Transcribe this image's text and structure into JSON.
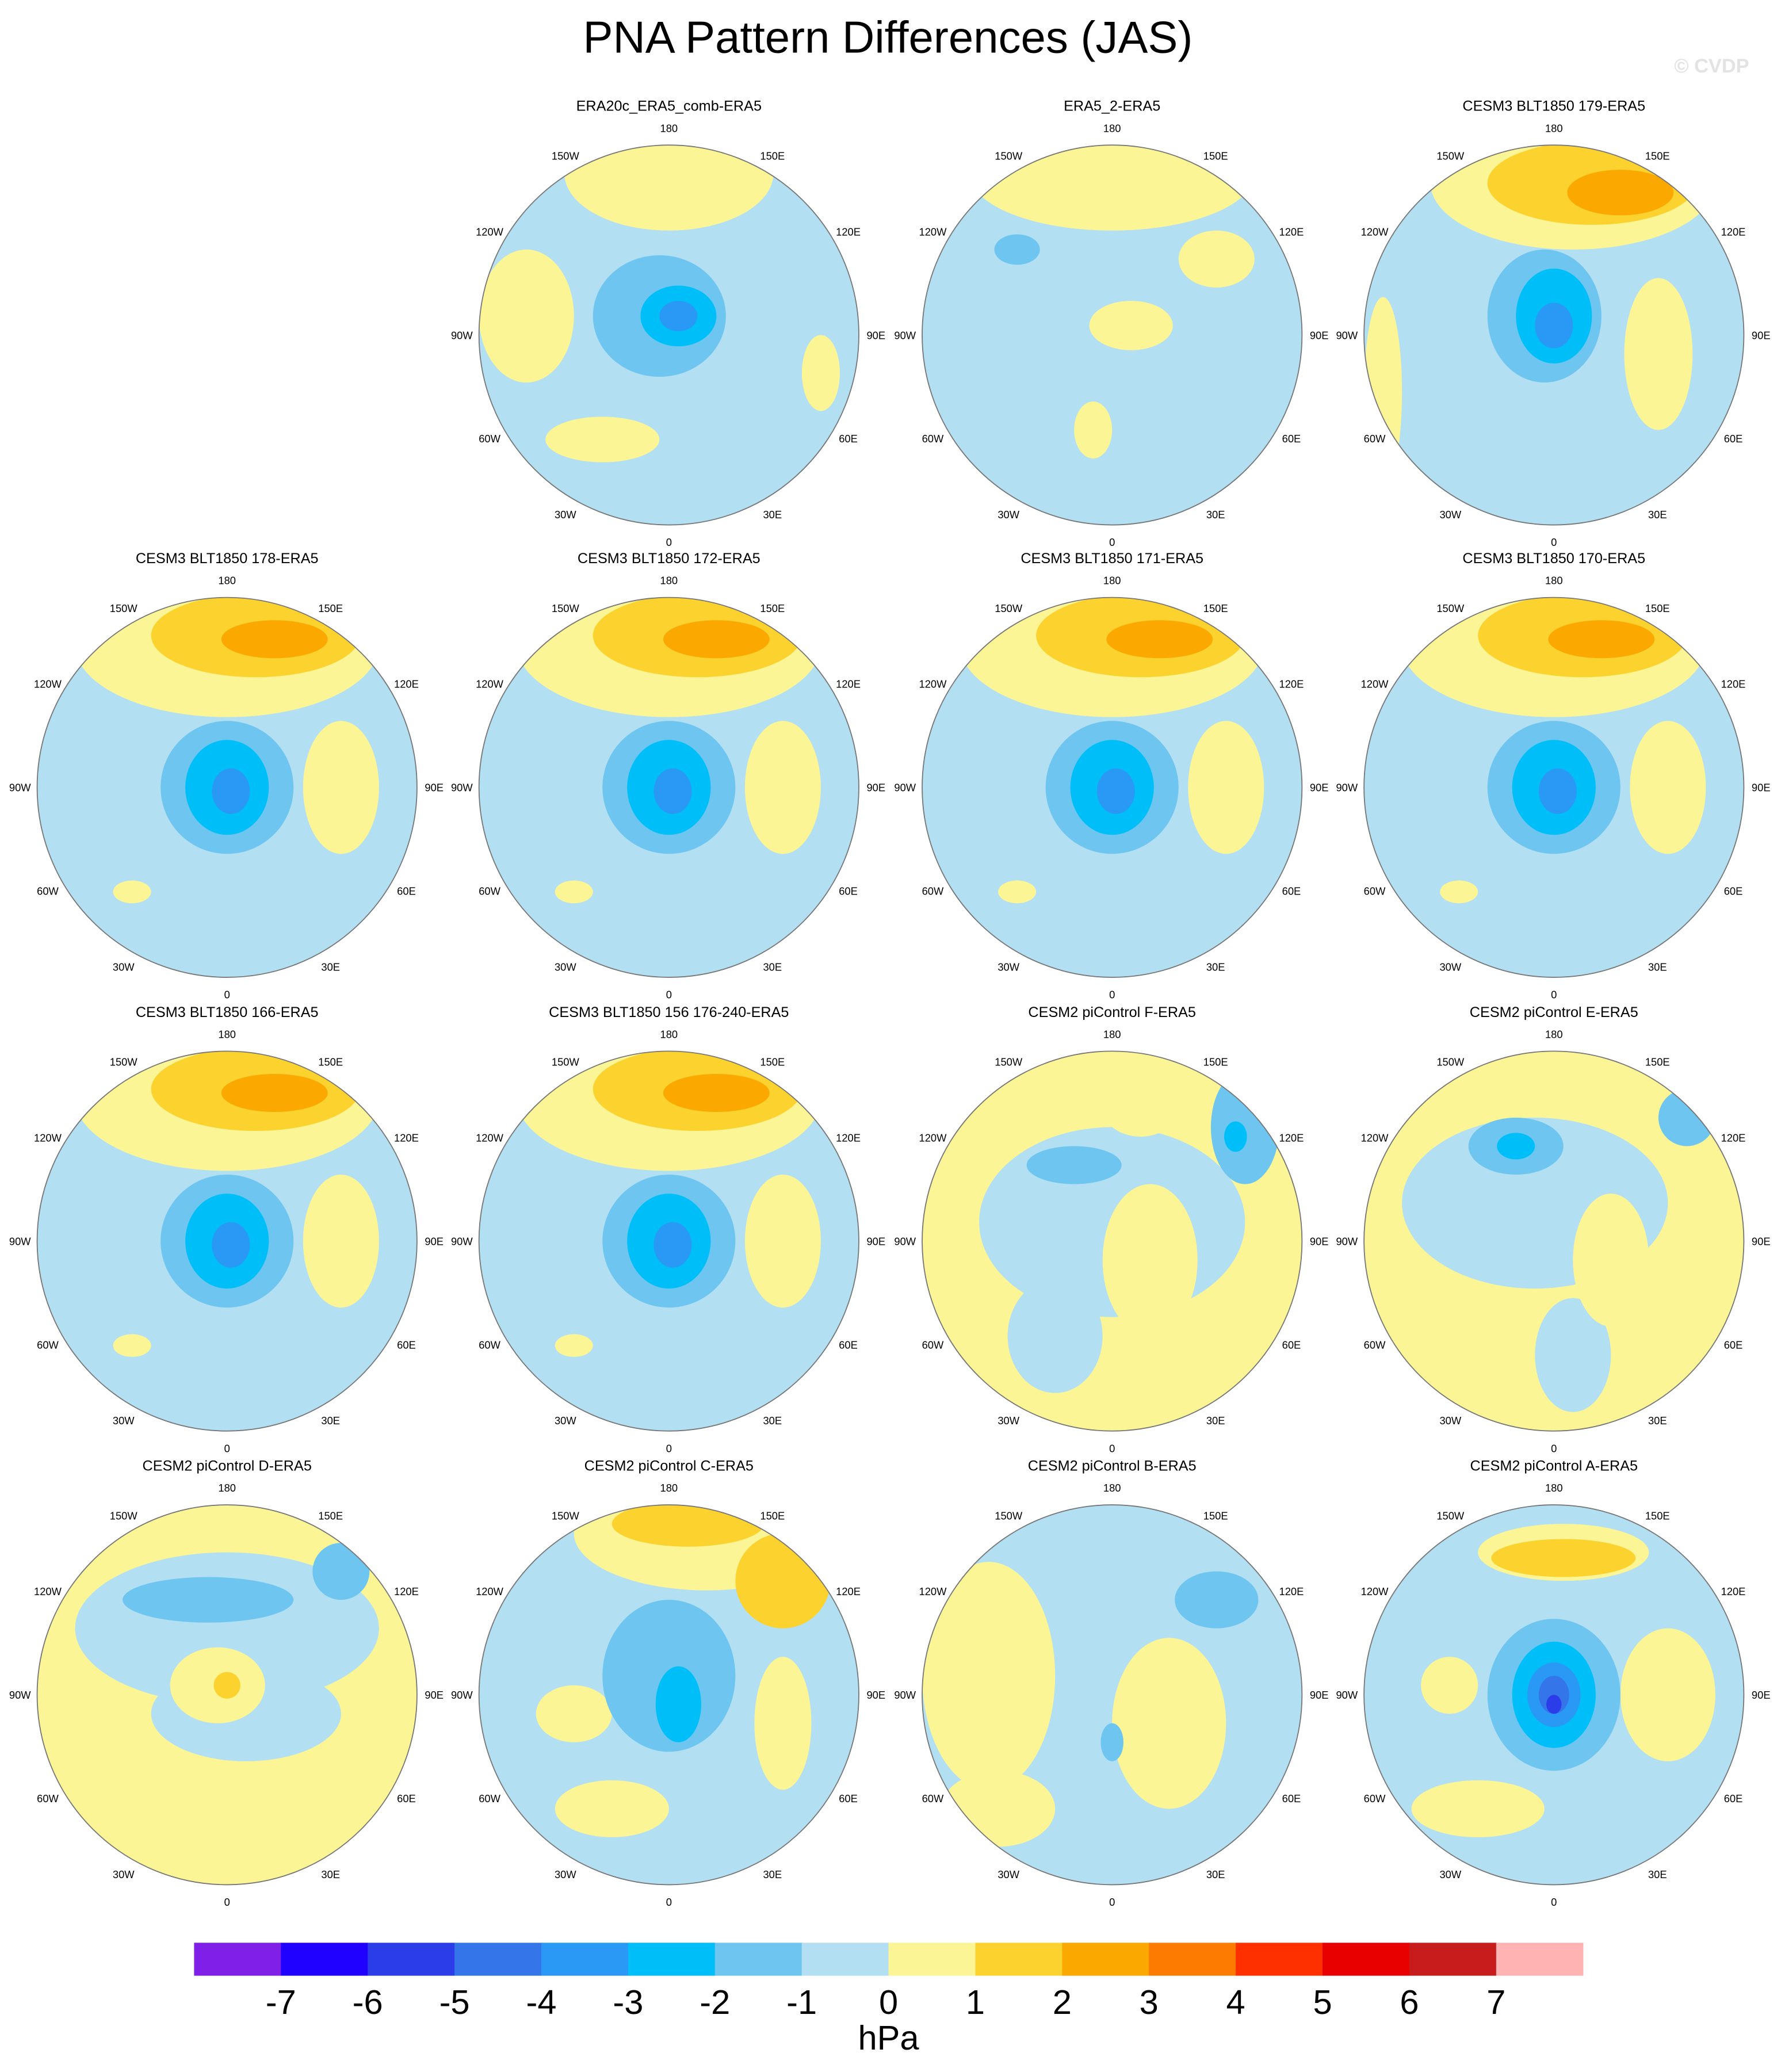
{
  "title": "PNA Pattern Differences (JAS)",
  "watermark": "© CVDP",
  "panels": [
    {
      "title": "ERA20c_ERA5_comb-ERA5"
    },
    {
      "title": "ERA5_2-ERA5"
    },
    {
      "title": "CESM3 BLT1850 179-ERA5"
    },
    {
      "title": "CESM3 BLT1850 178-ERA5"
    },
    {
      "title": "CESM3 BLT1850 172-ERA5"
    },
    {
      "title": "CESM3 BLT1850 171-ERA5"
    },
    {
      "title": "CESM3 BLT1850 170-ERA5"
    },
    {
      "title": "CESM3 BLT1850 166-ERA5"
    },
    {
      "title": "CESM3 BLT1850 156 176-240-ERA5"
    },
    {
      "title": "CESM2 piControl F-ERA5"
    },
    {
      "title": "CESM2 piControl E-ERA5"
    },
    {
      "title": "CESM2 piControl D-ERA5"
    },
    {
      "title": "CESM2 piControl C-ERA5"
    },
    {
      "title": "CESM2 piControl B-ERA5"
    },
    {
      "title": "CESM2 piControl A-ERA5"
    }
  ],
  "longitude_labels": [
    "0",
    "30E",
    "60E",
    "90E",
    "120E",
    "150E",
    "180",
    "150W",
    "120W",
    "90W",
    "60W",
    "30W"
  ],
  "colorbar": {
    "colors": [
      "#7f1fe8",
      "#2000ff",
      "#2a3de8",
      "#3575ea",
      "#2a98f5",
      "#00bff8",
      "#6ec6f0",
      "#b3dff2",
      "#fcf596",
      "#fbd22e",
      "#fba800",
      "#fc7b00",
      "#ff3000",
      "#e80000",
      "#c81c1c",
      "#ffb3b3"
    ],
    "ticks": [
      -7,
      -6,
      -5,
      -4,
      -3,
      -2,
      -1,
      0,
      1,
      2,
      3,
      4,
      5,
      6,
      7
    ],
    "unit": "hPa"
  }
}
